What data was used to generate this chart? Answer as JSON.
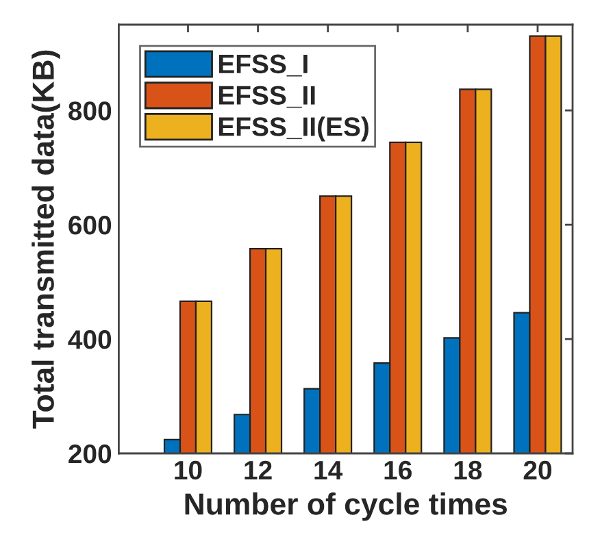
{
  "chart_data": {
    "type": "bar",
    "xlabel": "Number of cycle times",
    "ylabel": "Total transmitted data(KB)",
    "categories": [
      "10",
      "12",
      "14",
      "16",
      "18",
      "20"
    ],
    "series": [
      {
        "name": "EFSS_I",
        "color": "#0072bd",
        "values": [
          224,
          268,
          313,
          358,
          402,
          446
        ]
      },
      {
        "name": "EFSS_II",
        "color": "#d95319",
        "values": [
          466,
          558,
          650,
          744,
          837,
          930
        ]
      },
      {
        "name": "EFSS_II(ES)",
        "color": "#edb120",
        "values": [
          466,
          558,
          650,
          744,
          837,
          930
        ]
      }
    ],
    "ylim": [
      200,
      950
    ],
    "yticks": [
      200,
      400,
      600,
      800
    ],
    "grid": false,
    "legend": "top left"
  }
}
